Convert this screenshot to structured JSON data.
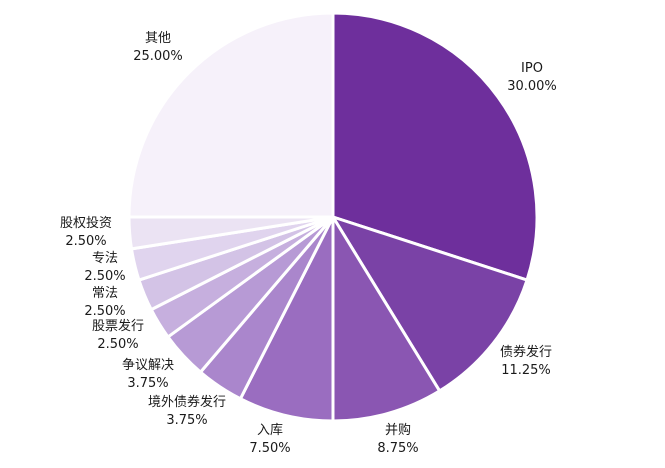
{
  "chart_data": {
    "type": "pie",
    "title": "",
    "slices": [
      {
        "name": "IPO",
        "value": 30.0,
        "label": "30.00%",
        "color": "#6e2f9c"
      },
      {
        "name": "债券发行",
        "value": 11.25,
        "label": "11.25%",
        "color": "#7a42a6"
      },
      {
        "name": "并购",
        "value": 8.75,
        "label": "8.75%",
        "color": "#8a56b2"
      },
      {
        "name": "入库",
        "value": 7.5,
        "label": "7.50%",
        "color": "#9a6dc0"
      },
      {
        "name": "境外债券发行",
        "value": 3.75,
        "label": "3.75%",
        "color": "#aa86cc"
      },
      {
        "name": "争议解决",
        "value": 3.75,
        "label": "3.75%",
        "color": "#b79ad5"
      },
      {
        "name": "股票发行",
        "value": 2.5,
        "label": "2.50%",
        "color": "#c6afde"
      },
      {
        "name": "常法",
        "value": 2.5,
        "label": "2.50%",
        "color": "#d3c3e6"
      },
      {
        "name": "专法",
        "value": 2.5,
        "label": "2.50%",
        "color": "#e0d4ee"
      },
      {
        "name": "股权投资",
        "value": 2.5,
        "label": "2.50%",
        "color": "#ebe3f3"
      },
      {
        "name": "其他",
        "value": 25.0,
        "label": "25.00%",
        "color": "#f6f1fa"
      }
    ]
  }
}
